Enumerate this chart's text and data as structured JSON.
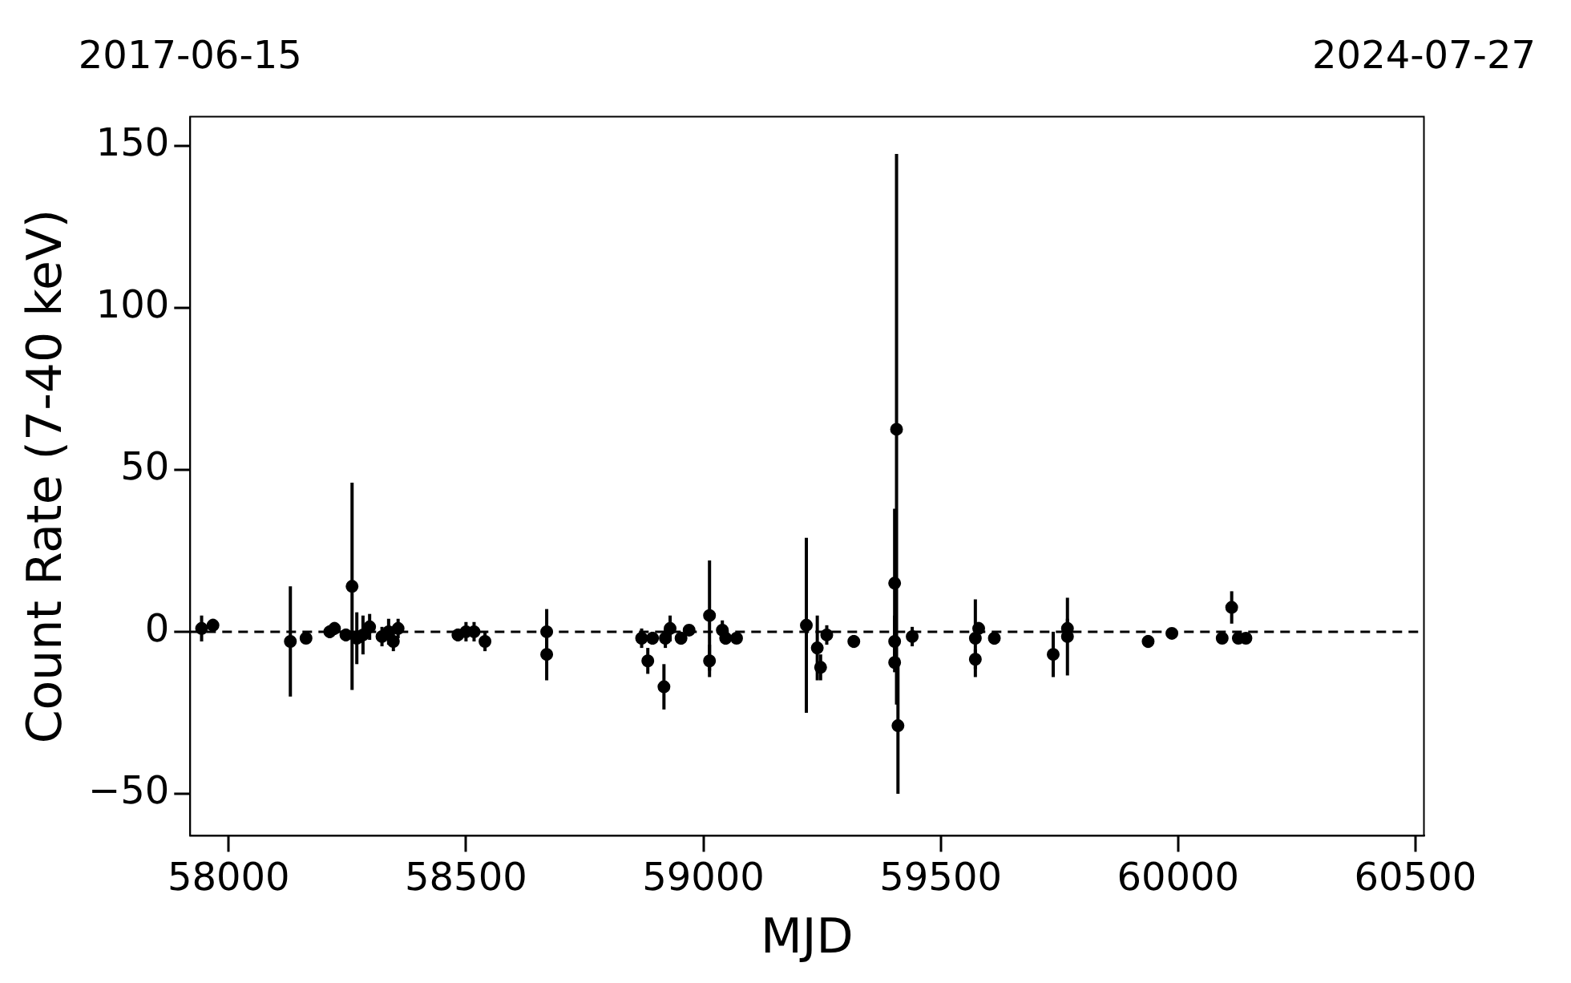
{
  "chart_data": {
    "type": "scatter",
    "xlabel": "MJD",
    "ylabel": "Count Rate (7-40 keV)",
    "marker": "circle",
    "grid": false,
    "legend": false,
    "xlim": [
      57919,
      60518
    ],
    "xticks": [
      58000,
      58500,
      59000,
      59500,
      60000,
      60500
    ],
    "x2lim": [
      "2017-06-15",
      "2024-07-27"
    ],
    "x2ticks": [
      "2017-06-15",
      "2024-07-27"
    ],
    "ylim": [
      -63,
      159
    ],
    "yticks": [
      {
        "value": -50,
        "label": "−50"
      },
      0,
      50,
      100,
      150
    ],
    "ref_lines": [
      {
        "axis": "y",
        "value": 0,
        "line_style": "dashed",
        "color": "#000000"
      }
    ],
    "series": [
      {
        "color": "#000000",
        "x": [
          57943,
          57967,
          58130,
          58163,
          58213,
          58223,
          58247,
          58260,
          58270,
          58283,
          58297,
          58323,
          58337,
          58347,
          58357,
          58483,
          58500,
          58517,
          58540,
          58670,
          58670,
          58870,
          58883,
          58893,
          58917,
          58920,
          58930,
          58953,
          58970,
          59013,
          59013,
          59040,
          59047,
          59070,
          59217,
          59240,
          59247,
          59260,
          59317,
          59407,
          59403,
          59403,
          59403,
          59410,
          59440,
          59573,
          59573,
          59580,
          59613,
          59737,
          59767,
          59767,
          59937,
          59987,
          60093,
          60113,
          60127,
          60143
        ],
        "values": [
          1,
          2,
          -3,
          -2,
          0,
          1,
          -1,
          14,
          -2,
          -1,
          1.5,
          -1.5,
          0,
          -3,
          1,
          -1,
          0,
          0,
          -3,
          0,
          -7,
          -2,
          -9,
          -2,
          -17,
          -2,
          1,
          -2,
          0.5,
          5,
          -9,
          0.5,
          -2,
          -2,
          2,
          -5,
          -11,
          -1,
          -3,
          62.5,
          15,
          -3,
          -9.5,
          -29,
          -1.5,
          -2,
          -8.5,
          1,
          -2,
          -7,
          1,
          -1.5,
          -3,
          -0.5,
          -2,
          7.5,
          -2,
          -2
        ],
        "errors": [
          4,
          2,
          17,
          1.5,
          2,
          2,
          2,
          32,
          8,
          6,
          4,
          3,
          4,
          3,
          3,
          2,
          3,
          3,
          3,
          7,
          8,
          3,
          4,
          2,
          7,
          3,
          4,
          2,
          1,
          17,
          5,
          3,
          2,
          1,
          27,
          10,
          4,
          3,
          2,
          85,
          23,
          8,
          3,
          21,
          3,
          12,
          3,
          2,
          2,
          7,
          3,
          12,
          2,
          0.5,
          1,
          5,
          1,
          1
        ]
      }
    ]
  }
}
